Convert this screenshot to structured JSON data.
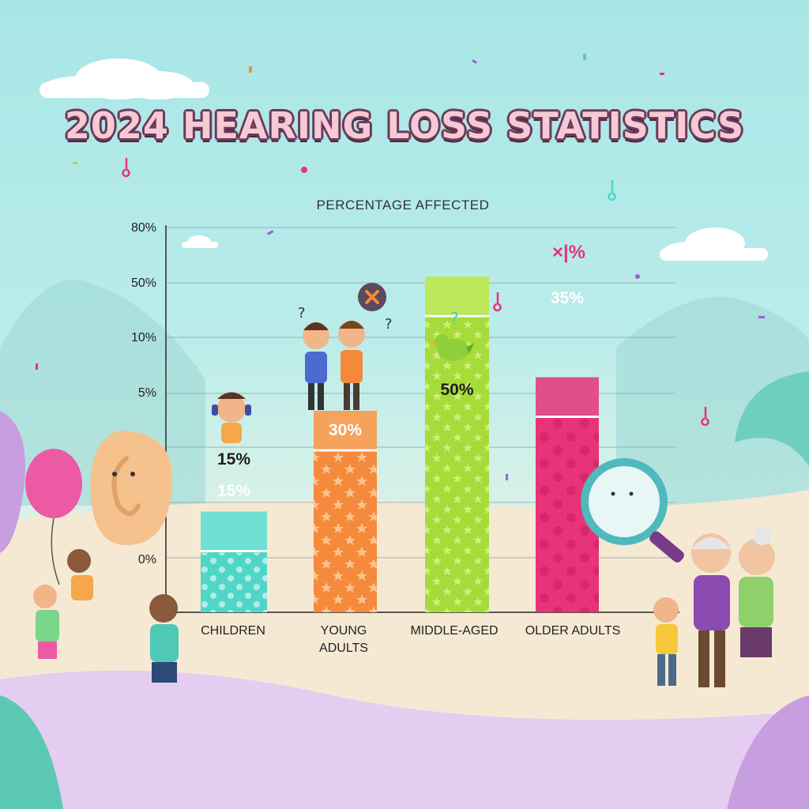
{
  "title": "2024 HEARING LOSS STATISTICS",
  "chart_data": {
    "type": "bar",
    "ylabel": "PERCENTAGE AFFECTED",
    "y_tick_labels": [
      "80%",
      "50%",
      "10%",
      "5%",
      "0%"
    ],
    "categories": [
      "CHILDREN",
      "YOUNG ADULTS",
      "MIDDLE-AGED",
      "OLDER ADULTS"
    ],
    "values": [
      15,
      30,
      50,
      35
    ],
    "data_labels": [
      [
        "15%",
        "15%"
      ],
      [
        "30%"
      ],
      [
        "50%"
      ],
      [
        "35%"
      ]
    ],
    "colors": [
      "#4fd6c8",
      "#f58a3c",
      "#a6db3a",
      "#e8337a"
    ],
    "header_colors": [
      "#6fe0d3",
      "#f4a25c",
      "#bde85a",
      "#e04f8a"
    ],
    "grid": true
  },
  "decorations": {
    "bar_top_mark": "×|%",
    "speech_bubble_icon": "x-mark-icon"
  }
}
